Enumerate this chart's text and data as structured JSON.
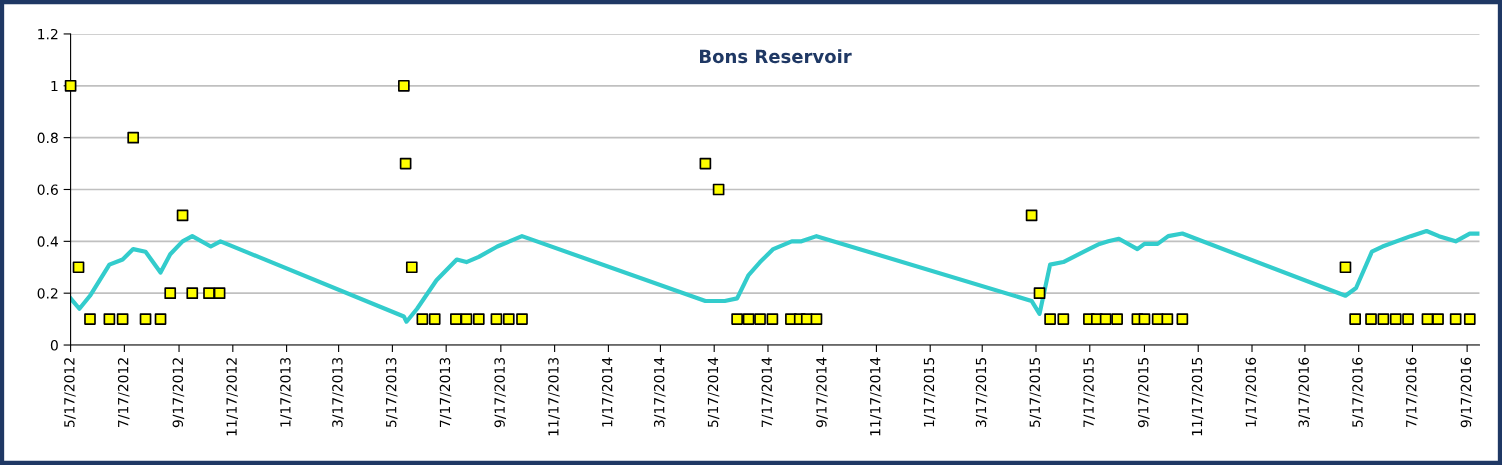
{
  "chart_data": {
    "type": "scatter",
    "title": "Bons Reservoir",
    "xlim": [
      "2012-05-17",
      "2016-10-01"
    ],
    "xticks": [
      {
        "value": "2012-05-17",
        "label": "5/17/2012"
      },
      {
        "value": "2012-07-17",
        "label": "7/17/2012"
      },
      {
        "value": "2012-09-17",
        "label": "9/17/2012"
      },
      {
        "value": "2012-11-17",
        "label": "11/17/2012"
      },
      {
        "value": "2013-01-17",
        "label": "1/17/2013"
      },
      {
        "value": "2013-03-17",
        "label": "3/17/2013"
      },
      {
        "value": "2013-05-17",
        "label": "5/17/2013"
      },
      {
        "value": "2013-07-17",
        "label": "7/17/2013"
      },
      {
        "value": "2013-09-17",
        "label": "9/17/2013"
      },
      {
        "value": "2013-11-17",
        "label": "11/17/2013"
      },
      {
        "value": "2014-01-17",
        "label": "1/17/2014"
      },
      {
        "value": "2014-03-17",
        "label": "3/17/2014"
      },
      {
        "value": "2014-05-17",
        "label": "5/17/2014"
      },
      {
        "value": "2014-07-17",
        "label": "7/17/2014"
      },
      {
        "value": "2014-09-17",
        "label": "9/17/2014"
      },
      {
        "value": "2014-11-17",
        "label": "11/17/2014"
      },
      {
        "value": "2015-01-17",
        "label": "1/17/2015"
      },
      {
        "value": "2015-03-17",
        "label": "3/17/2015"
      },
      {
        "value": "2015-05-17",
        "label": "5/17/2015"
      },
      {
        "value": "2015-07-17",
        "label": "7/17/2015"
      },
      {
        "value": "2015-09-17",
        "label": "9/17/2015"
      },
      {
        "value": "2015-11-17",
        "label": "11/17/2015"
      },
      {
        "value": "2016-01-17",
        "label": "1/17/2016"
      },
      {
        "value": "2016-03-17",
        "label": "3/17/2016"
      },
      {
        "value": "2016-05-17",
        "label": "5/17/2016"
      },
      {
        "value": "2016-07-17",
        "label": "7/17/2016"
      },
      {
        "value": "2016-09-17",
        "label": "9/17/2016"
      }
    ],
    "ylim": [
      0,
      1.2
    ],
    "yticks": [
      0,
      0.2,
      0.4,
      0.6,
      0.8,
      1,
      1.2
    ],
    "grid": "y",
    "series": [
      {
        "type": "line",
        "color": "#33cccc",
        "marker": "none",
        "line_style": "solid",
        "x": [
          "2012-05-17",
          "2012-05-27",
          "2012-06-08",
          "2012-06-30",
          "2012-07-15",
          "2012-07-27",
          "2012-08-10",
          "2012-08-27",
          "2012-09-07",
          "2012-09-21",
          "2012-10-02",
          "2012-10-23",
          "2012-11-03",
          "2013-05-30",
          "2013-06-02",
          "2013-06-14",
          "2013-07-06",
          "2013-07-29",
          "2013-08-09",
          "2013-08-23",
          "2013-09-13",
          "2013-10-11",
          "2014-05-07",
          "2014-05-29",
          "2014-06-12",
          "2014-06-25",
          "2014-07-08",
          "2014-07-23",
          "2014-08-13",
          "2014-08-24",
          "2014-09-10",
          "2015-05-12",
          "2015-05-21",
          "2015-06-02",
          "2015-06-17",
          "2015-07-16",
          "2015-07-28",
          "2015-08-07",
          "2015-08-19",
          "2015-09-09",
          "2015-09-17",
          "2015-10-02",
          "2015-10-14",
          "2015-10-30",
          "2016-05-02",
          "2016-05-14",
          "2016-06-01",
          "2016-06-13",
          "2016-07-15",
          "2016-08-02",
          "2016-08-16",
          "2016-09-04",
          "2016-09-20",
          "2016-09-30"
        ],
        "values": [
          0.18,
          0.14,
          0.19,
          0.31,
          0.33,
          0.37,
          0.36,
          0.28,
          0.35,
          0.4,
          0.42,
          0.38,
          0.4,
          0.11,
          0.09,
          0.14,
          0.25,
          0.33,
          0.32,
          0.34,
          0.38,
          0.42,
          0.17,
          0.17,
          0.18,
          0.27,
          0.32,
          0.37,
          0.4,
          0.4,
          0.42,
          0.17,
          0.12,
          0.31,
          0.32,
          0.37,
          0.39,
          0.4,
          0.41,
          0.37,
          0.39,
          0.39,
          0.42,
          0.43,
          0.19,
          0.22,
          0.36,
          0.38,
          0.42,
          0.44,
          0.42,
          0.4,
          0.43,
          0.43
        ]
      },
      {
        "color": "#ffff00",
        "marker": "square",
        "x": [
          "2012-05-17",
          "2012-05-26",
          "2012-06-08",
          "2012-06-30",
          "2012-07-15",
          "2012-07-27",
          "2012-08-10",
          "2012-08-27",
          "2012-09-07",
          "2012-09-21",
          "2012-10-02",
          "2012-10-21",
          "2012-11-02",
          "2013-05-30",
          "2013-06-01",
          "2013-06-08",
          "2013-06-20",
          "2013-07-04",
          "2013-07-28",
          "2013-08-09",
          "2013-08-23",
          "2013-09-12",
          "2013-09-26",
          "2013-10-11",
          "2014-05-07",
          "2014-05-22",
          "2014-06-12",
          "2014-06-25",
          "2014-07-08",
          "2014-07-22",
          "2014-08-12",
          "2014-08-22",
          "2014-08-30",
          "2014-09-10",
          "2015-05-12",
          "2015-05-21",
          "2015-06-02",
          "2015-06-17",
          "2015-07-16",
          "2015-07-25",
          "2015-08-04",
          "2015-08-17",
          "2015-09-09",
          "2015-09-17",
          "2015-10-02",
          "2015-10-13",
          "2015-10-30",
          "2016-05-02",
          "2016-05-13",
          "2016-05-31",
          "2016-06-14",
          "2016-06-28",
          "2016-07-12",
          "2016-08-03",
          "2016-08-15",
          "2016-09-04",
          "2016-09-20"
        ],
        "values": [
          1,
          0.3,
          0.1,
          0.1,
          0.1,
          0.8,
          0.1,
          0.1,
          0.2,
          0.5,
          0.2,
          0.2,
          0.2,
          1,
          0.7,
          0.3,
          0.1,
          0.1,
          0.1,
          0.1,
          0.1,
          0.1,
          0.1,
          0.1,
          0.7,
          0.6,
          0.1,
          0.1,
          0.1,
          0.1,
          0.1,
          0.1,
          0.1,
          0.1,
          0.5,
          0.2,
          0.1,
          0.1,
          0.1,
          0.1,
          0.1,
          0.1,
          0.1,
          0.1,
          0.1,
          0.1,
          0.1,
          0.3,
          0.1,
          0.1,
          0.1,
          0.1,
          0.1,
          0.1,
          0.1,
          0.1,
          0.1
        ]
      }
    ]
  }
}
